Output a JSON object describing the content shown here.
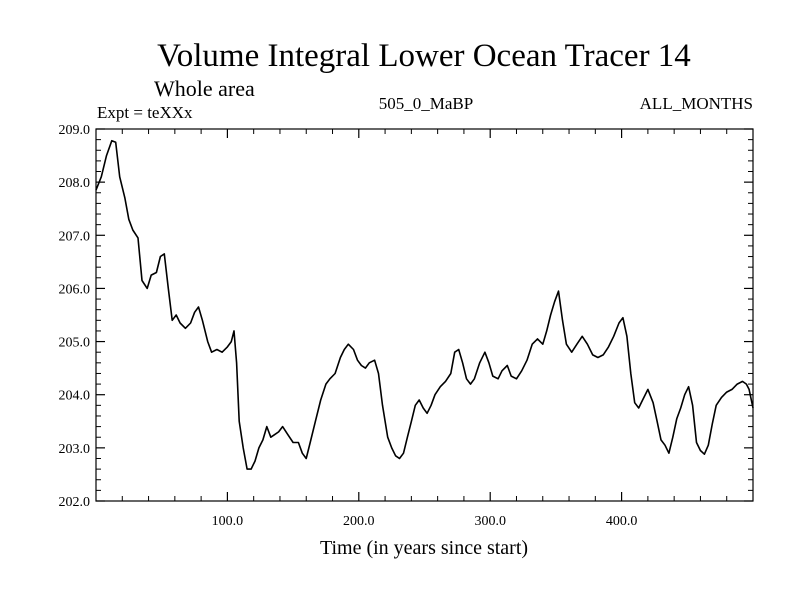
{
  "chart_data": {
    "type": "line",
    "title": "Volume Integral Lower Ocean Tracer 14",
    "subtitle": "Whole area",
    "header_left": "Expt = teXXx",
    "header_center": "505_0_MaBP",
    "header_right": "ALL_MONTHS",
    "xlabel": "Time (in years since start)",
    "ylabel": "",
    "xlim": [
      0,
      500
    ],
    "ylim": [
      202.0,
      209.0
    ],
    "x_ticks": [
      100,
      200,
      300,
      400
    ],
    "x_tick_labels": [
      "100.0",
      "200.0",
      "300.0",
      "400.0"
    ],
    "y_ticks": [
      202,
      203,
      204,
      205,
      206,
      207,
      208,
      209
    ],
    "y_tick_labels": [
      "202.0",
      "203.0",
      "204.0",
      "205.0",
      "206.0",
      "207.0",
      "208.0",
      "209.0"
    ],
    "grid": false,
    "series": [
      {
        "name": "Volume Integral Lower Ocean Tracer 14",
        "color": "#000000",
        "points": [
          [
            0,
            207.85
          ],
          [
            4,
            208.1
          ],
          [
            8,
            208.5
          ],
          [
            12,
            208.78
          ],
          [
            15,
            208.75
          ],
          [
            18,
            208.1
          ],
          [
            22,
            207.7
          ],
          [
            25,
            207.3
          ],
          [
            28,
            207.1
          ],
          [
            32,
            206.95
          ],
          [
            35,
            206.15
          ],
          [
            39,
            206.0
          ],
          [
            42,
            206.25
          ],
          [
            46,
            206.3
          ],
          [
            49,
            206.6
          ],
          [
            52,
            206.65
          ],
          [
            55,
            206.0
          ],
          [
            58,
            205.4
          ],
          [
            61,
            205.5
          ],
          [
            64,
            205.35
          ],
          [
            68,
            205.25
          ],
          [
            72,
            205.35
          ],
          [
            75,
            205.55
          ],
          [
            78,
            205.65
          ],
          [
            81,
            205.4
          ],
          [
            85,
            205.0
          ],
          [
            88,
            204.8
          ],
          [
            92,
            204.85
          ],
          [
            96,
            204.8
          ],
          [
            100,
            204.9
          ],
          [
            103,
            205.0
          ],
          [
            105,
            205.2
          ],
          [
            107,
            204.6
          ],
          [
            109,
            203.5
          ],
          [
            112,
            203.0
          ],
          [
            115,
            202.6
          ],
          [
            118,
            202.6
          ],
          [
            121,
            202.75
          ],
          [
            124,
            203.0
          ],
          [
            127,
            203.15
          ],
          [
            130,
            203.4
          ],
          [
            133,
            203.2
          ],
          [
            136,
            203.25
          ],
          [
            139,
            203.3
          ],
          [
            142,
            203.4
          ],
          [
            146,
            203.25
          ],
          [
            150,
            203.1
          ],
          [
            154,
            203.1
          ],
          [
            157,
            202.9
          ],
          [
            160,
            202.8
          ],
          [
            163,
            203.1
          ],
          [
            167,
            203.5
          ],
          [
            171,
            203.9
          ],
          [
            175,
            204.2
          ],
          [
            178,
            204.3
          ],
          [
            182,
            204.4
          ],
          [
            186,
            204.7
          ],
          [
            189,
            204.85
          ],
          [
            192,
            204.95
          ],
          [
            196,
            204.85
          ],
          [
            199,
            204.65
          ],
          [
            202,
            204.55
          ],
          [
            205,
            204.5
          ],
          [
            208,
            204.6
          ],
          [
            212,
            204.65
          ],
          [
            215,
            204.4
          ],
          [
            218,
            203.8
          ],
          [
            222,
            203.2
          ],
          [
            225,
            203.0
          ],
          [
            228,
            202.85
          ],
          [
            231,
            202.8
          ],
          [
            234,
            202.9
          ],
          [
            237,
            203.2
          ],
          [
            240,
            203.5
          ],
          [
            243,
            203.8
          ],
          [
            246,
            203.9
          ],
          [
            249,
            203.75
          ],
          [
            252,
            203.65
          ],
          [
            255,
            203.8
          ],
          [
            258,
            204.0
          ],
          [
            262,
            204.15
          ],
          [
            266,
            204.25
          ],
          [
            270,
            204.4
          ],
          [
            273,
            204.8
          ],
          [
            276,
            204.85
          ],
          [
            279,
            204.6
          ],
          [
            282,
            204.3
          ],
          [
            285,
            204.2
          ],
          [
            288,
            204.3
          ],
          [
            292,
            204.6
          ],
          [
            296,
            204.8
          ],
          [
            299,
            204.6
          ],
          [
            302,
            204.35
          ],
          [
            306,
            204.3
          ],
          [
            309,
            204.45
          ],
          [
            313,
            204.55
          ],
          [
            316,
            204.35
          ],
          [
            320,
            204.3
          ],
          [
            324,
            204.45
          ],
          [
            328,
            204.65
          ],
          [
            332,
            204.95
          ],
          [
            336,
            205.05
          ],
          [
            340,
            204.95
          ],
          [
            343,
            205.2
          ],
          [
            346,
            205.5
          ],
          [
            349,
            205.75
          ],
          [
            352,
            205.95
          ],
          [
            355,
            205.4
          ],
          [
            358,
            204.95
          ],
          [
            362,
            204.8
          ],
          [
            366,
            204.95
          ],
          [
            370,
            205.1
          ],
          [
            374,
            204.95
          ],
          [
            378,
            204.75
          ],
          [
            382,
            204.7
          ],
          [
            386,
            204.75
          ],
          [
            390,
            204.9
          ],
          [
            394,
            205.1
          ],
          [
            398,
            205.35
          ],
          [
            401,
            205.45
          ],
          [
            404,
            205.1
          ],
          [
            407,
            204.4
          ],
          [
            410,
            203.85
          ],
          [
            413,
            203.75
          ],
          [
            416,
            203.9
          ],
          [
            420,
            204.1
          ],
          [
            424,
            203.85
          ],
          [
            427,
            203.5
          ],
          [
            430,
            203.15
          ],
          [
            433,
            203.05
          ],
          [
            436,
            202.9
          ],
          [
            439,
            203.2
          ],
          [
            442,
            203.55
          ],
          [
            445,
            203.75
          ],
          [
            448,
            204.0
          ],
          [
            451,
            204.15
          ],
          [
            454,
            203.8
          ],
          [
            457,
            203.1
          ],
          [
            460,
            202.95
          ],
          [
            463,
            202.88
          ],
          [
            466,
            203.05
          ],
          [
            469,
            203.45
          ],
          [
            472,
            203.8
          ],
          [
            476,
            203.95
          ],
          [
            480,
            204.05
          ],
          [
            484,
            204.1
          ],
          [
            488,
            204.2
          ],
          [
            492,
            204.25
          ],
          [
            495,
            204.2
          ],
          [
            497,
            204.1
          ],
          [
            500,
            203.75
          ]
        ]
      }
    ]
  }
}
